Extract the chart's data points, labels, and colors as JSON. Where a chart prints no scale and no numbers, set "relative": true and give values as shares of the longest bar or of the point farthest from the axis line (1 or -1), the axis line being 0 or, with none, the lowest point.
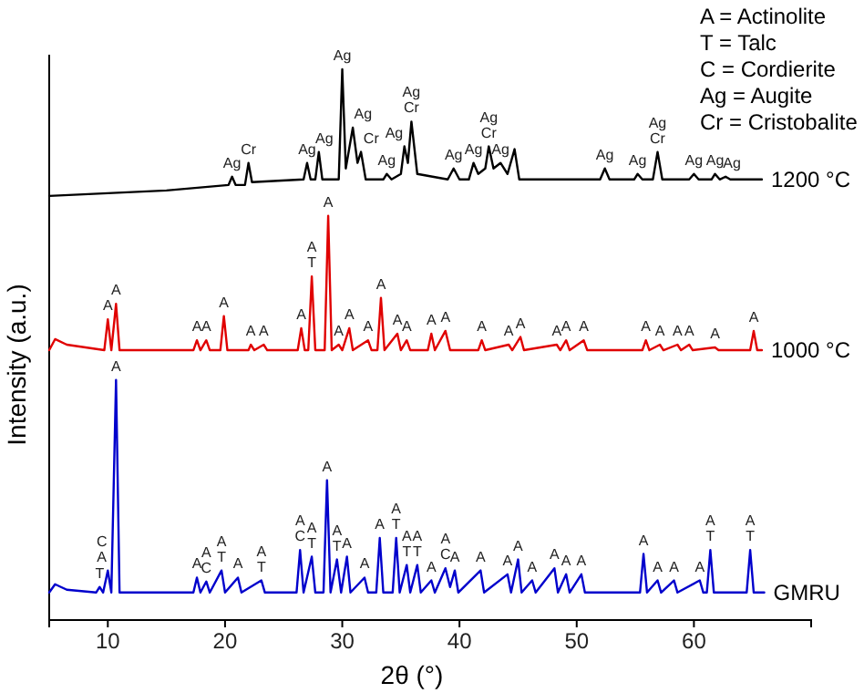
{
  "chart_data": {
    "type": "line",
    "relative": true,
    "xlabel": "2θ (°)",
    "ylabel": "Intensity (a.u.)",
    "xlim": [
      5,
      70
    ],
    "xticks": [
      10,
      20,
      30,
      40,
      50,
      60
    ],
    "series": [
      {
        "name": "1200 °C",
        "color": "#000000",
        "x": [
          5,
          10,
          15,
          20.3,
          20.6,
          20.9,
          21.7,
          22.0,
          22.3,
          26.7,
          27.0,
          27.3,
          27.7,
          28.0,
          28.3,
          29.7,
          30.0,
          30.3,
          30.9,
          31.3,
          31.6,
          32.0,
          33.5,
          33.8,
          34.2,
          35.0,
          35.3,
          35.6,
          35.9,
          36.4,
          39.0,
          39.5,
          40.0,
          40.8,
          41.2,
          41.6,
          42.2,
          42.5,
          42.9,
          43.5,
          44.1,
          44.7,
          45.1,
          52.0,
          52.4,
          52.8,
          54.9,
          55.2,
          55.6,
          56.5,
          56.9,
          57.3,
          59.6,
          60.0,
          60.4,
          61.5,
          61.8,
          62.2,
          62.7,
          63.1,
          65.8
        ],
        "values": [
          0.77,
          0.775,
          0.78,
          0.79,
          0.805,
          0.79,
          0.79,
          0.83,
          0.795,
          0.8,
          0.83,
          0.8,
          0.8,
          0.85,
          0.8,
          0.8,
          1.0,
          0.82,
          0.894,
          0.83,
          0.85,
          0.8,
          0.8,
          0.81,
          0.8,
          0.81,
          0.86,
          0.83,
          0.905,
          0.81,
          0.8,
          0.82,
          0.8,
          0.8,
          0.83,
          0.81,
          0.82,
          0.86,
          0.82,
          0.83,
          0.81,
          0.855,
          0.8,
          0.8,
          0.82,
          0.8,
          0.8,
          0.81,
          0.8,
          0.8,
          0.85,
          0.8,
          0.8,
          0.81,
          0.8,
          0.8,
          0.81,
          0.8,
          0.805,
          0.8,
          0.8
        ]
      },
      {
        "name": "1000 °C",
        "color": "#e00000",
        "x": [
          5,
          5.5,
          6.5,
          9.7,
          10.0,
          10.3,
          10.7,
          11.0,
          17.3,
          17.6,
          17.9,
          18.4,
          18.7,
          19.6,
          19.9,
          20.2,
          22.0,
          22.2,
          22.5,
          23.3,
          23.6,
          26.2,
          26.5,
          26.8,
          27.1,
          27.4,
          27.7,
          28.5,
          28.8,
          29.1,
          29.7,
          30.0,
          30.6,
          30.9,
          32.2,
          32.5,
          33.0,
          33.3,
          33.6,
          34.7,
          35.0,
          35.5,
          35.8,
          37.3,
          37.6,
          37.9,
          38.8,
          39.2,
          41.6,
          41.9,
          42.2,
          44.2,
          44.5,
          45.2,
          45.5,
          48.3,
          48.6,
          49.1,
          49.4,
          50.6,
          50.9,
          55.6,
          55.9,
          56.2,
          57.1,
          57.4,
          58.6,
          58.9,
          59.6,
          59.9,
          61.8,
          62.1,
          64.8,
          65.1,
          65.4,
          65.8
        ],
        "values": [
          0.49,
          0.51,
          0.5,
          0.49,
          0.546,
          0.49,
          0.574,
          0.49,
          0.49,
          0.508,
          0.49,
          0.508,
          0.49,
          0.49,
          0.552,
          0.49,
          0.49,
          0.5,
          0.49,
          0.5,
          0.49,
          0.49,
          0.53,
          0.49,
          0.49,
          0.624,
          0.49,
          0.49,
          0.734,
          0.49,
          0.5,
          0.49,
          0.53,
          0.49,
          0.508,
          0.49,
          0.49,
          0.585,
          0.49,
          0.52,
          0.49,
          0.508,
          0.49,
          0.49,
          0.52,
          0.49,
          0.525,
          0.49,
          0.49,
          0.508,
          0.49,
          0.5,
          0.49,
          0.514,
          0.49,
          0.5,
          0.49,
          0.508,
          0.49,
          0.508,
          0.49,
          0.49,
          0.508,
          0.49,
          0.5,
          0.49,
          0.5,
          0.49,
          0.5,
          0.49,
          0.495,
          0.49,
          0.49,
          0.525,
          0.49,
          0.49
        ]
      },
      {
        "name": "GMRU",
        "color": "#0000cc",
        "x": [
          5,
          5.5,
          6.5,
          9.0,
          9.3,
          9.6,
          10.0,
          10.3,
          10.7,
          11.0,
          17.3,
          17.6,
          17.9,
          18.4,
          18.7,
          19.7,
          20.0,
          21.1,
          21.4,
          23.1,
          23.4,
          26.1,
          26.4,
          26.7,
          27.4,
          27.7,
          28.4,
          28.7,
          29.0,
          29.55,
          29.9,
          30.4,
          30.7,
          31.9,
          32.2,
          32.9,
          33.2,
          33.5,
          34.3,
          34.6,
          34.9,
          35.5,
          35.8,
          36.4,
          36.7,
          37.6,
          37.9,
          38.8,
          39.2,
          39.6,
          39.9,
          41.8,
          42.1,
          44.1,
          44.4,
          45.0,
          45.3,
          46.2,
          46.5,
          48.1,
          48.4,
          49.1,
          49.4,
          50.4,
          50.7,
          55.4,
          55.7,
          56.0,
          56.9,
          57.2,
          58.3,
          58.6,
          60.5,
          60.8,
          61.1,
          61.4,
          61.7,
          64.5,
          64.8,
          65.1,
          66.0
        ],
        "values": [
          0.05,
          0.065,
          0.055,
          0.05,
          0.06,
          0.05,
          0.09,
          0.05,
          0.436,
          0.05,
          0.05,
          0.077,
          0.05,
          0.07,
          0.05,
          0.09,
          0.05,
          0.077,
          0.05,
          0.072,
          0.05,
          0.05,
          0.127,
          0.05,
          0.115,
          0.05,
          0.05,
          0.254,
          0.05,
          0.11,
          0.05,
          0.115,
          0.05,
          0.077,
          0.05,
          0.05,
          0.149,
          0.05,
          0.05,
          0.149,
          0.05,
          0.1,
          0.05,
          0.1,
          0.05,
          0.072,
          0.05,
          0.094,
          0.06,
          0.09,
          0.05,
          0.09,
          0.05,
          0.083,
          0.05,
          0.11,
          0.05,
          0.072,
          0.05,
          0.094,
          0.05,
          0.083,
          0.05,
          0.083,
          0.05,
          0.05,
          0.12,
          0.05,
          0.072,
          0.05,
          0.072,
          0.05,
          0.072,
          0.05,
          0.05,
          0.127,
          0.05,
          0.05,
          0.127,
          0.05,
          0.05
        ]
      }
    ],
    "annotations": [
      "A = Actinolite",
      "T = Talc",
      "C = Cordierite",
      "Ag = Augite",
      "Cr = Cristobalite",
      {
        "text": "Ag",
        "x": 20.6,
        "y": 0.805
      },
      {
        "text": "Cr",
        "x": 22.0,
        "y": 0.83
      },
      {
        "text": "Ag",
        "x": 27.0,
        "y": 0.83
      },
      {
        "text": "Ag",
        "x": 28.0,
        "y": 0.85
      },
      {
        "text": "Ag",
        "x": 30.0,
        "y": 1.0
      },
      {
        "text": "Ag",
        "x": 30.9,
        "y": 0.894
      },
      {
        "text": "Cr",
        "x": 31.6,
        "y": 0.85
      },
      {
        "text": "Ag",
        "x": 33.8,
        "y": 0.81
      },
      {
        "text": "Ag",
        "x": 35.3,
        "y": 0.86
      },
      {
        "text": "Ag",
        "x": 35.9,
        "y": 0.905
      },
      {
        "text": "Cr",
        "x": 35.9,
        "y": 0.905
      },
      {
        "text": "Ag",
        "x": 39.5,
        "y": 0.82
      },
      {
        "text": "Ag",
        "x": 41.2,
        "y": 0.83
      },
      {
        "text": "Ag",
        "x": 42.5,
        "y": 0.86
      },
      {
        "text": "Cr",
        "x": 42.5,
        "y": 0.86
      },
      {
        "text": "Ag",
        "x": 43.5,
        "y": 0.83
      },
      {
        "text": "Ag",
        "x": 52.4,
        "y": 0.82
      },
      {
        "text": "Ag",
        "x": 55.2,
        "y": 0.81
      },
      {
        "text": "Ag",
        "x": 56.9,
        "y": 0.85
      },
      {
        "text": "Cr",
        "x": 56.9,
        "y": 0.85
      },
      {
        "text": "Ag",
        "x": 60.0,
        "y": 0.81
      },
      {
        "text": "Ag",
        "x": 61.8,
        "y": 0.81
      },
      {
        "text": "Ag",
        "x": 62.7,
        "y": 0.805
      },
      {
        "text": "A",
        "x": 10.0,
        "y": 0.546
      },
      {
        "text": "A",
        "x": 10.7,
        "y": 0.574
      },
      {
        "text": "A",
        "x": 17.6,
        "y": 0.508
      },
      {
        "text": "A",
        "x": 18.4,
        "y": 0.508
      },
      {
        "text": "A",
        "x": 19.9,
        "y": 0.552
      },
      {
        "text": "A",
        "x": 22.2,
        "y": 0.5
      },
      {
        "text": "A",
        "x": 23.3,
        "y": 0.5
      },
      {
        "text": "A",
        "x": 26.5,
        "y": 0.53
      },
      {
        "text": "A",
        "x": 27.4,
        "y": 0.624
      },
      {
        "text": "T",
        "x": 27.4,
        "y": 0.624
      },
      {
        "text": "A",
        "x": 28.8,
        "y": 0.734
      },
      {
        "text": "A",
        "x": 29.7,
        "y": 0.5
      },
      {
        "text": "A",
        "x": 30.6,
        "y": 0.53
      },
      {
        "text": "A",
        "x": 32.2,
        "y": 0.508
      },
      {
        "text": "A",
        "x": 33.3,
        "y": 0.585
      },
      {
        "text": "A",
        "x": 34.7,
        "y": 0.52
      },
      {
        "text": "A",
        "x": 35.5,
        "y": 0.508
      },
      {
        "text": "A",
        "x": 37.6,
        "y": 0.52
      },
      {
        "text": "A",
        "x": 38.8,
        "y": 0.525
      },
      {
        "text": "A",
        "x": 41.9,
        "y": 0.508
      },
      {
        "text": "A",
        "x": 44.2,
        "y": 0.5
      },
      {
        "text": "A",
        "x": 45.2,
        "y": 0.514
      },
      {
        "text": "A",
        "x": 48.3,
        "y": 0.5
      },
      {
        "text": "A",
        "x": 49.1,
        "y": 0.508
      },
      {
        "text": "A",
        "x": 50.6,
        "y": 0.508
      },
      {
        "text": "A",
        "x": 55.9,
        "y": 0.508
      },
      {
        "text": "A",
        "x": 57.1,
        "y": 0.5
      },
      {
        "text": "A",
        "x": 58.6,
        "y": 0.5
      },
      {
        "text": "A",
        "x": 59.6,
        "y": 0.5
      },
      {
        "text": "A",
        "x": 61.8,
        "y": 0.495
      },
      {
        "text": "A",
        "x": 65.1,
        "y": 0.525
      },
      {
        "text": "T",
        "x": 9.3,
        "y": 0.06
      },
      {
        "text": "C",
        "x": 10.0,
        "y": 0.09
      },
      {
        "text": "A",
        "x": 10.0,
        "y": 0.09
      },
      {
        "text": "A",
        "x": 10.7,
        "y": 0.436
      },
      {
        "text": "A",
        "x": 17.6,
        "y": 0.077
      },
      {
        "text": "A",
        "x": 18.4,
        "y": 0.07
      },
      {
        "text": "C",
        "x": 18.4,
        "y": 0.07
      },
      {
        "text": "A",
        "x": 19.7,
        "y": 0.09
      },
      {
        "text": "T",
        "x": 19.7,
        "y": 0.09
      },
      {
        "text": "A",
        "x": 21.1,
        "y": 0.077
      },
      {
        "text": "A",
        "x": 23.1,
        "y": 0.072
      },
      {
        "text": "T",
        "x": 23.1,
        "y": 0.072
      },
      {
        "text": "A",
        "x": 26.4,
        "y": 0.127
      },
      {
        "text": "C",
        "x": 26.4,
        "y": 0.127
      },
      {
        "text": "A",
        "x": 27.4,
        "y": 0.115
      },
      {
        "text": "T",
        "x": 27.4,
        "y": 0.115
      },
      {
        "text": "A",
        "x": 28.7,
        "y": 0.254
      },
      {
        "text": "A",
        "x": 29.55,
        "y": 0.11
      },
      {
        "text": "T",
        "x": 29.55,
        "y": 0.11
      },
      {
        "text": "A",
        "x": 30.4,
        "y": 0.115
      },
      {
        "text": "A",
        "x": 31.9,
        "y": 0.077
      },
      {
        "text": "A",
        "x": 33.2,
        "y": 0.149
      },
      {
        "text": "A",
        "x": 34.6,
        "y": 0.149
      },
      {
        "text": "T",
        "x": 34.6,
        "y": 0.149
      },
      {
        "text": "A",
        "x": 35.5,
        "y": 0.1
      },
      {
        "text": "T",
        "x": 35.5,
        "y": 0.1
      },
      {
        "text": "A",
        "x": 36.4,
        "y": 0.1
      },
      {
        "text": "T",
        "x": 36.4,
        "y": 0.1
      },
      {
        "text": "A",
        "x": 37.6,
        "y": 0.072
      },
      {
        "text": "A",
        "x": 38.8,
        "y": 0.094
      },
      {
        "text": "C",
        "x": 38.8,
        "y": 0.094
      },
      {
        "text": "A",
        "x": 39.6,
        "y": 0.09
      },
      {
        "text": "A",
        "x": 41.8,
        "y": 0.09
      },
      {
        "text": "A",
        "x": 44.1,
        "y": 0.083
      },
      {
        "text": "A",
        "x": 45.0,
        "y": 0.11
      },
      {
        "text": "A",
        "x": 46.2,
        "y": 0.072
      },
      {
        "text": "A",
        "x": 48.1,
        "y": 0.094
      },
      {
        "text": "A",
        "x": 49.1,
        "y": 0.083
      },
      {
        "text": "A",
        "x": 50.4,
        "y": 0.083
      },
      {
        "text": "A",
        "x": 55.7,
        "y": 0.12
      },
      {
        "text": "A",
        "x": 56.9,
        "y": 0.072
      },
      {
        "text": "A",
        "x": 58.3,
        "y": 0.072
      },
      {
        "text": "A",
        "x": 60.5,
        "y": 0.072
      },
      {
        "text": "A",
        "x": 61.4,
        "y": 0.127
      },
      {
        "text": "T",
        "x": 61.4,
        "y": 0.127
      },
      {
        "text": "A",
        "x": 64.8,
        "y": 0.127
      },
      {
        "text": "T",
        "x": 64.8,
        "y": 0.127
      }
    ]
  }
}
